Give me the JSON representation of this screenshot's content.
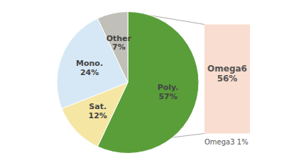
{
  "chart_data": {
    "type": "pie",
    "categories": [
      "Poly.",
      "Sat.",
      "Mono.",
      "Other"
    ],
    "values": [
      57,
      12,
      24,
      7
    ],
    "value_labels": [
      "57%",
      "12%",
      "24%",
      "7%"
    ],
    "colors": [
      "#5a9e3a",
      "#f5e6a3",
      "#d6e8f5",
      "#c0c0b8"
    ],
    "data_labels": true,
    "annotations": [
      "Omega6\n56%",
      "Omega3 1%"
    ]
  }
}
